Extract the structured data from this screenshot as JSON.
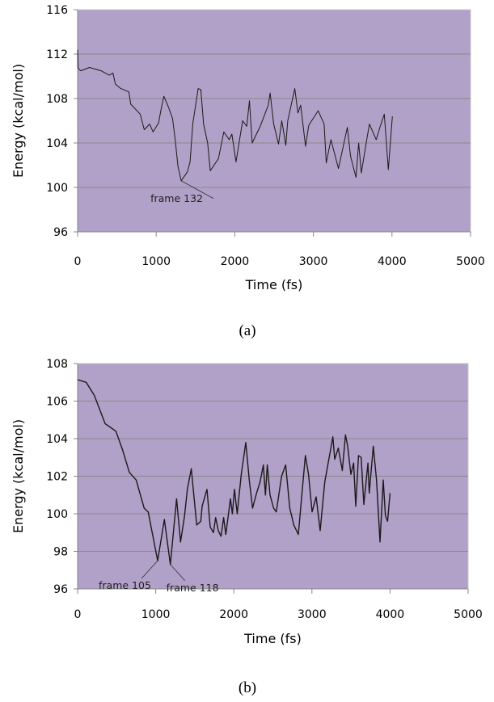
{
  "chart_data": [
    {
      "type": "line",
      "caption": "(a)",
      "title": "",
      "xlabel": "Time (fs)",
      "ylabel": "Energy (kcal/mol)",
      "xlim": [
        0,
        5000
      ],
      "ylim": [
        96,
        116
      ],
      "xticks": [
        0,
        1000,
        2000,
        3000,
        4000,
        5000
      ],
      "yticks": [
        96,
        100,
        104,
        108,
        112,
        116
      ],
      "grid": "horizontal",
      "plot_bg": "#b1a0c7",
      "line_color": "#1a1a1a",
      "annotations": [
        {
          "text": "frame 132",
          "x": 1318,
          "y": 100.6
        }
      ],
      "x": [
        0,
        7,
        41,
        151,
        299,
        402,
        450,
        480,
        549,
        652,
        676,
        796,
        848,
        916,
        961,
        1030,
        1064,
        1098,
        1157,
        1208,
        1242,
        1277,
        1318,
        1397,
        1431,
        1465,
        1534,
        1568,
        1603,
        1654,
        1688,
        1792,
        1860,
        1929,
        1963,
        2015,
        2100,
        2152,
        2186,
        2221,
        2323,
        2426,
        2450,
        2495,
        2557,
        2598,
        2649,
        2674,
        2763,
        2804,
        2838,
        2900,
        2941,
        3061,
        3137,
        3164,
        3223,
        3267,
        3319,
        3432,
        3473,
        3542,
        3576,
        3610,
        3679,
        3713,
        3799,
        3851,
        3902,
        3954,
        4005
      ],
      "y": [
        112.4,
        110.7,
        110.5,
        110.8,
        110.5,
        110.1,
        110.3,
        109.3,
        108.9,
        108.6,
        107.5,
        106.6,
        105.2,
        105.7,
        105.0,
        105.8,
        107.1,
        108.2,
        107.2,
        106.2,
        104.3,
        101.9,
        100.6,
        101.4,
        102.3,
        105.7,
        108.9,
        108.8,
        105.7,
        104.0,
        101.5,
        102.6,
        105.0,
        104.3,
        104.8,
        102.3,
        106.0,
        105.5,
        107.8,
        104.0,
        105.5,
        107.4,
        108.5,
        105.7,
        103.9,
        106.0,
        103.8,
        106.0,
        108.9,
        106.7,
        107.4,
        103.7,
        105.6,
        106.9,
        105.7,
        102.2,
        104.3,
        103.1,
        101.7,
        105.4,
        102.8,
        100.9,
        104.0,
        101.3,
        104.3,
        105.7,
        104.3,
        105.5,
        106.6,
        101.6,
        106.4
      ]
    },
    {
      "type": "line",
      "caption": "(b)",
      "title": "",
      "xlabel": "Time (fs)",
      "ylabel": "Energy (kcal/mol)",
      "xlim": [
        0,
        5000
      ],
      "ylim": [
        96,
        108
      ],
      "xticks": [
        0,
        1000,
        2000,
        3000,
        4000,
        5000
      ],
      "yticks": [
        96,
        98,
        100,
        102,
        104,
        106,
        108
      ],
      "grid": "horizontal",
      "plot_bg": "#b1a0c7",
      "line_color": "#1a1a1a",
      "annotations": [
        {
          "text": "frame 105",
          "x": 1025,
          "y": 97.5
        },
        {
          "text": "frame 118",
          "x": 1187,
          "y": 97.3
        }
      ],
      "x": [
        0,
        110,
        214,
        352,
        490,
        576,
        663,
        749,
        852,
        904,
        1025,
        1111,
        1187,
        1267,
        1318,
        1370,
        1405,
        1456,
        1525,
        1577,
        1594,
        1656,
        1698,
        1739,
        1767,
        1801,
        1836,
        1870,
        1898,
        1957,
        1981,
        2008,
        2043,
        2095,
        2153,
        2198,
        2240,
        2291,
        2336,
        2378,
        2405,
        2429,
        2464,
        2509,
        2543,
        2612,
        2664,
        2716,
        2768,
        2826,
        2871,
        2916,
        2957,
        3002,
        3054,
        3106,
        3165,
        3234,
        3268,
        3292,
        3337,
        3389,
        3430,
        3458,
        3499,
        3534,
        3561,
        3596,
        3630,
        3665,
        3717,
        3734,
        3786,
        3827,
        3872,
        3913,
        3941,
        3969,
        4000
      ],
      "y": [
        107.14,
        107.0,
        106.3,
        104.8,
        104.4,
        103.4,
        102.2,
        101.8,
        100.3,
        100.1,
        97.5,
        99.7,
        97.3,
        100.8,
        98.5,
        99.9,
        101.3,
        102.4,
        99.4,
        99.6,
        100.4,
        101.3,
        99.3,
        99.0,
        99.8,
        99.1,
        98.8,
        99.8,
        98.9,
        100.8,
        100.0,
        101.3,
        100.0,
        102.1,
        103.8,
        101.8,
        100.3,
        101.1,
        101.7,
        102.6,
        101.0,
        102.6,
        101.0,
        100.3,
        100.1,
        102.0,
        102.6,
        100.3,
        99.4,
        98.9,
        101.0,
        103.1,
        102.1,
        100.1,
        100.9,
        99.1,
        101.7,
        103.3,
        104.1,
        102.9,
        103.5,
        102.3,
        104.2,
        103.6,
        102.1,
        102.7,
        100.4,
        103.1,
        103.0,
        100.5,
        102.7,
        101.1,
        103.6,
        101.8,
        98.5,
        101.8,
        99.9,
        99.6,
        101.1
      ]
    }
  ]
}
